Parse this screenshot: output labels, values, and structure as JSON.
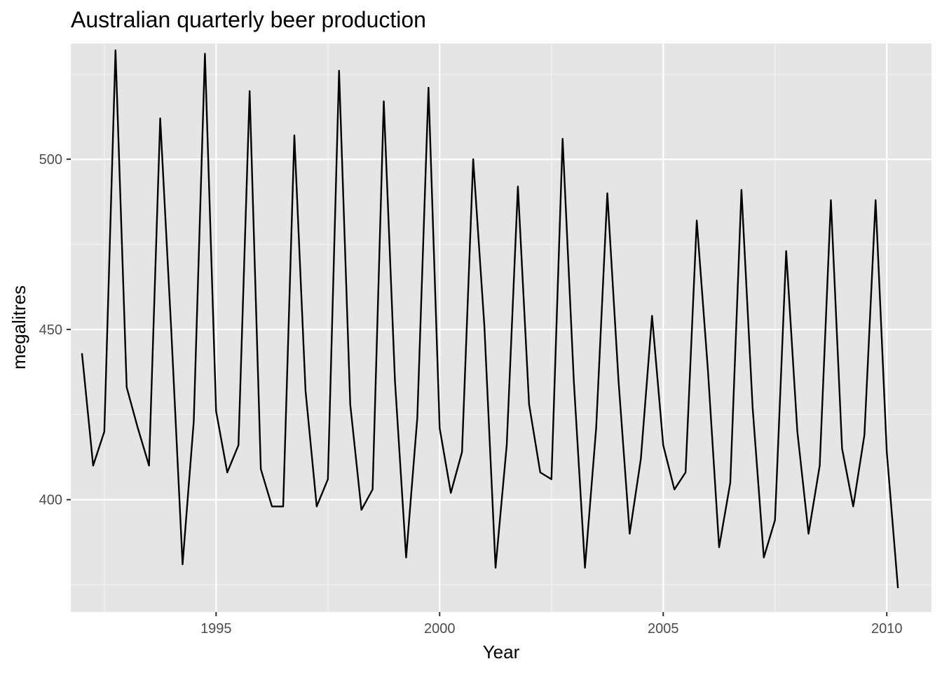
{
  "chart_data": {
    "type": "line",
    "title": "Australian quarterly beer production",
    "xlabel": "Year",
    "ylabel": "megalitres",
    "x_ticks": [
      1995,
      2000,
      2005,
      2010
    ],
    "y_ticks": [
      400,
      450,
      500
    ],
    "xlim": [
      1991.75,
      2011.0
    ],
    "ylim": [
      367,
      534
    ],
    "grid": true,
    "series": [
      {
        "x": [
          1992.0,
          1992.25,
          1992.5,
          1992.75,
          1993.0,
          1993.25,
          1993.5,
          1993.75,
          1994.0,
          1994.25,
          1994.5,
          1994.75,
          1995.0,
          1995.25,
          1995.5,
          1995.75,
          1996.0,
          1996.25,
          1996.5,
          1996.75,
          1997.0,
          1997.25,
          1997.5,
          1997.75,
          1998.0,
          1998.25,
          1998.5,
          1998.75,
          1999.0,
          1999.25,
          1999.5,
          1999.75,
          2000.0,
          2000.25,
          2000.5,
          2000.75,
          2001.0,
          2001.25,
          2001.5,
          2001.75,
          2002.0,
          2002.25,
          2002.5,
          2002.75,
          2003.0,
          2003.25,
          2003.5,
          2003.75,
          2004.0,
          2004.25,
          2004.5,
          2004.75,
          2005.0,
          2005.25,
          2005.5,
          2005.75,
          2006.0,
          2006.25,
          2006.5,
          2006.75,
          2007.0,
          2007.25,
          2007.5,
          2007.75,
          2008.0,
          2008.25,
          2008.5,
          2008.75,
          2009.0,
          2009.25,
          2009.5,
          2009.75,
          2010.0,
          2010.25
        ],
        "y": [
          443,
          410,
          420,
          532,
          433,
          421,
          410,
          512,
          449,
          381,
          423,
          531,
          426,
          408,
          416,
          520,
          409,
          398,
          398,
          507,
          432,
          398,
          406,
          526,
          428,
          397,
          403,
          517,
          435,
          383,
          424,
          521,
          421,
          402,
          414,
          500,
          451,
          380,
          416,
          492,
          428,
          408,
          406,
          506,
          435,
          380,
          421,
          490,
          435,
          390,
          412,
          454,
          416,
          403,
          408,
          482,
          438,
          386,
          405,
          491,
          427,
          383,
          394,
          473,
          420,
          390,
          410,
          488,
          415,
          398,
          419,
          488,
          414,
          374
        ]
      }
    ]
  }
}
